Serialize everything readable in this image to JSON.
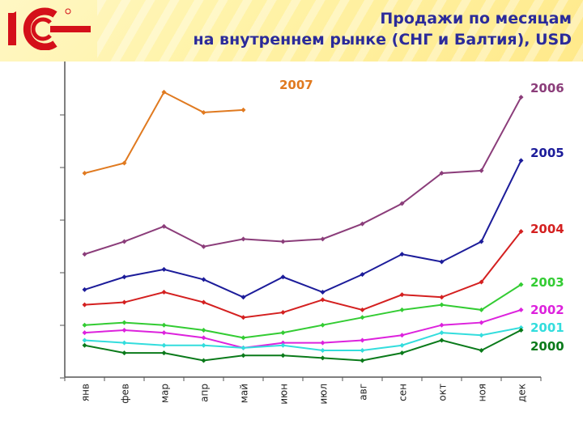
{
  "header": {
    "logo_text": "1С",
    "title_line1": "Продажи по месяцам",
    "title_line2": "на внутреннем рынке (СНГ и Балтия), USD"
  },
  "chart_data": {
    "type": "line",
    "categories": [
      "янв",
      "фев",
      "мар",
      "апр",
      "май",
      "июн",
      "июл",
      "авг",
      "сен",
      "окт",
      "ноя",
      "дек"
    ],
    "ylim": [
      0,
      100
    ],
    "series": [
      {
        "name": "2007",
        "color": "#e07a20",
        "values": [
          78,
          82,
          110,
          102,
          103,
          null,
          null,
          null,
          null,
          null,
          null,
          null
        ]
      },
      {
        "name": "2006",
        "color": "#8b3d7a",
        "values": [
          46,
          51,
          57,
          49,
          52,
          51,
          52,
          58,
          66,
          78,
          79,
          108
        ]
      },
      {
        "name": "2005",
        "color": "#1c1c9a",
        "values": [
          32,
          37,
          40,
          36,
          29,
          37,
          31,
          38,
          46,
          43,
          51,
          83
        ]
      },
      {
        "name": "2004",
        "color": "#d42020",
        "values": [
          26,
          27,
          31,
          27,
          21,
          23,
          28,
          24,
          30,
          29,
          35,
          55
        ]
      },
      {
        "name": "2003",
        "color": "#33cc33",
        "values": [
          18,
          19,
          18,
          16,
          13,
          15,
          18,
          21,
          24,
          26,
          24,
          34
        ]
      },
      {
        "name": "2002",
        "color": "#dd22dd",
        "values": [
          15,
          16,
          15,
          13,
          9,
          11,
          11,
          12,
          14,
          18,
          19,
          24
        ]
      },
      {
        "name": "2001",
        "color": "#33dddd",
        "values": [
          12,
          11,
          10,
          10,
          9,
          10,
          8,
          8,
          10,
          15,
          14,
          17
        ]
      },
      {
        "name": "2000",
        "color": "#0a7a1a",
        "values": [
          10,
          7,
          7,
          4,
          6,
          6,
          5,
          4,
          7,
          12,
          8,
          16
        ]
      }
    ]
  }
}
